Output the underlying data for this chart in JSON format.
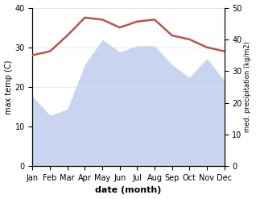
{
  "months": [
    "Jan",
    "Feb",
    "Mar",
    "Apr",
    "May",
    "Jun",
    "Jul",
    "Aug",
    "Sep",
    "Oct",
    "Nov",
    "Dec"
  ],
  "temp": [
    28,
    29,
    33,
    37.5,
    37,
    35,
    36.5,
    37,
    33,
    32,
    30,
    29
  ],
  "precip": [
    22,
    16,
    18,
    32,
    40,
    36,
    38,
    38,
    32,
    28,
    34,
    27
  ],
  "temp_color": "#c0504d",
  "precip_fill_color": "#c8d4f0",
  "ylabel_left": "max temp (C)",
  "ylabel_right": "med. precipitation (kg/m2)",
  "xlabel": "date (month)",
  "ylim_left": [
    0,
    40
  ],
  "ylim_right": [
    0,
    50
  ],
  "background_color": "#ffffff"
}
